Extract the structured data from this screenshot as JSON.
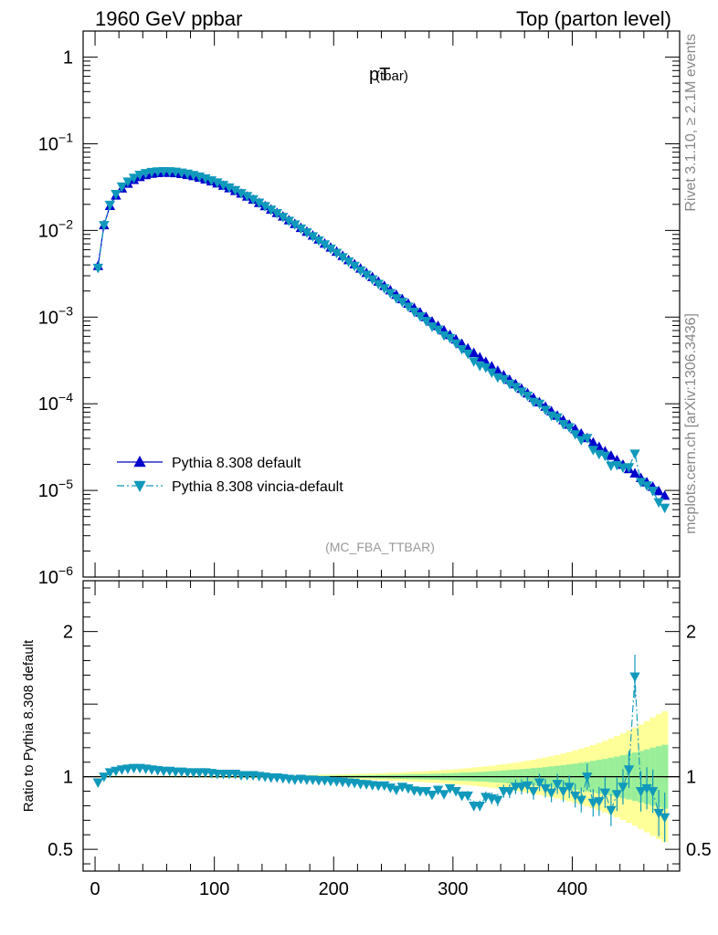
{
  "header": {
    "left": "1960 GeV ppbar",
    "right": "Top (parton level)"
  },
  "side_text": {
    "rivet": "Rivet 3.1.10, ≥ 2.1M events",
    "mcplots": "mcplots.cern.ch [arXiv:1306.3436]"
  },
  "chart_data": [
    {
      "type": "line",
      "title": "pT",
      "title_sub": "(tbar)",
      "analysis_tag": "(MC_FBA_TTBAR)",
      "y_scale": "log",
      "xlim": [
        -10,
        490
      ],
      "ylim": [
        1e-06,
        2
      ],
      "y_ticks": [
        {
          "value": 1,
          "mant": "1",
          "exp": ""
        },
        {
          "value": 0.1,
          "mant": "10",
          "exp": "−1"
        },
        {
          "value": 0.01,
          "mant": "10",
          "exp": "−2"
        },
        {
          "value": 0.001,
          "mant": "10",
          "exp": "−3"
        },
        {
          "value": 0.0001,
          "mant": "10",
          "exp": "−4"
        },
        {
          "value": 1e-05,
          "mant": "10",
          "exp": "−5"
        },
        {
          "value": 1e-06,
          "mant": "10",
          "exp": "−6"
        }
      ],
      "legend_position": "lower-left",
      "series": [
        {
          "name": "Pythia 8.308 default",
          "color": "#0000cc",
          "marker": "triangle-up",
          "line": "solid",
          "x": [
            2.5,
            7.5,
            12.5,
            17.5,
            22.5,
            27.5,
            32.5,
            37.5,
            42.5,
            47.5,
            52.5,
            57.5,
            62.5,
            67.5,
            72.5,
            77.5,
            82.5,
            87.5,
            92.5,
            97.5,
            102.5,
            107.5,
            112.5,
            117.5,
            122.5,
            127.5,
            132.5,
            137.5,
            142.5,
            147.5,
            152.5,
            157.5,
            162.5,
            167.5,
            172.5,
            177.5,
            182.5,
            187.5,
            192.5,
            197.5,
            202.5,
            207.5,
            212.5,
            217.5,
            222.5,
            227.5,
            232.5,
            237.5,
            242.5,
            247.5,
            252.5,
            257.5,
            262.5,
            267.5,
            272.5,
            277.5,
            282.5,
            287.5,
            292.5,
            297.5,
            302.5,
            307.5,
            312.5,
            317.5,
            322.5,
            327.5,
            332.5,
            337.5,
            342.5,
            347.5,
            352.5,
            357.5,
            362.5,
            367.5,
            372.5,
            377.5,
            382.5,
            387.5,
            392.5,
            397.5,
            402.5,
            407.5,
            412.5,
            417.5,
            422.5,
            427.5,
            432.5,
            437.5,
            442.5,
            447.5,
            452.5,
            457.5,
            462.5,
            467.5,
            472.5,
            477.5
          ],
          "y": [
            0.0039,
            0.0115,
            0.0192,
            0.0253,
            0.0305,
            0.0347,
            0.0383,
            0.0413,
            0.0435,
            0.0451,
            0.046,
            0.0464,
            0.0463,
            0.0458,
            0.0449,
            0.0437,
            0.0423,
            0.0406,
            0.0388,
            0.0369,
            0.0349,
            0.0328,
            0.0307,
            0.0286,
            0.0266,
            0.0246,
            0.0227,
            0.0208,
            0.0191,
            0.0174,
            0.0159,
            0.0145,
            0.0131,
            0.0119,
            0.0107,
            0.00968,
            0.00873,
            0.00786,
            0.00706,
            0.00634,
            0.00569,
            0.00509,
            0.00455,
            0.00407,
            0.00363,
            0.00324,
            0.00289,
            0.00257,
            0.00229,
            0.00204,
            0.00181,
            0.00161,
            0.00143,
            0.00127,
            0.00113,
            0.001,
            0.000889,
            0.000789,
            0.000701,
            0.000622,
            0.000552,
            0.00049,
            0.000435,
            0.000386,
            0.000343,
            0.000304,
            0.00027,
            0.00024,
            0.000213,
            0.000189,
            0.000168,
            0.000149,
            0.000132,
            0.000117,
            0.000104,
            9.25e-05,
            8.21e-05,
            7.29e-05,
            6.47e-05,
            5.74e-05,
            5.1e-05,
            4.53e-05,
            4.02e-05,
            3.57e-05,
            3.17e-05,
            2.82e-05,
            2.51e-05,
            2.23e-05,
            1.98e-05,
            1.76e-05,
            1.57e-05,
            1.39e-05,
            1.24e-05,
            1.1e-05,
            9.8e-06,
            8.7e-06
          ]
        },
        {
          "name": "Pythia 8.308 vincia-default",
          "color": "#1199bb",
          "marker": "triangle-down",
          "line": "dash-dot",
          "x": [
            2.5,
            7.5,
            12.5,
            17.5,
            22.5,
            27.5,
            32.5,
            37.5,
            42.5,
            47.5,
            52.5,
            57.5,
            62.5,
            67.5,
            72.5,
            77.5,
            82.5,
            87.5,
            92.5,
            97.5,
            102.5,
            107.5,
            112.5,
            117.5,
            122.5,
            127.5,
            132.5,
            137.5,
            142.5,
            147.5,
            152.5,
            157.5,
            162.5,
            167.5,
            172.5,
            177.5,
            182.5,
            187.5,
            192.5,
            197.5,
            202.5,
            207.5,
            212.5,
            217.5,
            222.5,
            227.5,
            232.5,
            237.5,
            242.5,
            247.5,
            252.5,
            257.5,
            262.5,
            267.5,
            272.5,
            277.5,
            282.5,
            287.5,
            292.5,
            297.5,
            302.5,
            307.5,
            312.5,
            317.5,
            322.5,
            327.5,
            332.5,
            337.5,
            342.5,
            347.5,
            352.5,
            357.5,
            362.5,
            367.5,
            372.5,
            377.5,
            382.5,
            387.5,
            392.5,
            397.5,
            402.5,
            407.5,
            412.5,
            417.5,
            422.5,
            427.5,
            432.5,
            437.5,
            442.5,
            447.5,
            452.5,
            457.5,
            462.5,
            467.5,
            472.5,
            477.5
          ],
          "y": [
            0.0037,
            0.0115,
            0.0197,
            0.0263,
            0.0321,
            0.0366,
            0.0405,
            0.0438,
            0.0459,
            0.0472,
            0.0479,
            0.0482,
            0.0481,
            0.0475,
            0.0464,
            0.0451,
            0.0436,
            0.0419,
            0.0399,
            0.0378,
            0.0357,
            0.0334,
            0.0313,
            0.0292,
            0.0269,
            0.0249,
            0.0229,
            0.0209,
            0.0191,
            0.0173,
            0.0158,
            0.0143,
            0.0129,
            0.0117,
            0.0105,
            0.00949,
            0.00855,
            0.00767,
            0.00688,
            0.00615,
            0.00551,
            0.00491,
            0.00437,
            0.0039,
            0.00345,
            0.00307,
            0.00272,
            0.00241,
            0.00215,
            0.00189,
            0.00165,
            0.0015,
            0.00132,
            0.00115,
            0.00102,
            0.0009,
            0.000778,
            0.000718,
            0.000617,
            0.000572,
            0.000497,
            0.000426,
            0.000378,
            0.000309,
            0.000274,
            0.000262,
            0.000229,
            0.000202,
            0.000192,
            0.00017,
            0.000156,
            0.000138,
            0.000124,
            0.000105,
            9.98e-05,
            8.51e-05,
            7.31e-05,
            6.93e-05,
            5.82e-05,
            5.34e-05,
            4.44e-05,
            3.81e-05,
            4.02e-05,
            2.93e-05,
            2.63e-05,
            2.51e-05,
            1.93e-05,
            1.96e-05,
            1.84e-05,
            1.85e-05,
            2.65e-05,
            1.25e-05,
            1.14e-05,
            9.9e-06,
            7.3e-06,
            6.3e-06
          ]
        }
      ]
    },
    {
      "type": "line",
      "ylabel": "Ratio to Pythia 8.308 default",
      "xlim": [
        -10,
        490
      ],
      "ylim": [
        0.35,
        2.35
      ],
      "x_ticks": [
        0,
        100,
        200,
        300,
        400
      ],
      "y_ticks": [
        0.5,
        1,
        2
      ],
      "reference_line": 1,
      "band_inner_color": "#99ee99",
      "band_outer_color": "#ffff99",
      "band_x": [
        2.5,
        7.5,
        12.5,
        17.5,
        22.5,
        27.5,
        32.5,
        37.5,
        42.5,
        47.5,
        52.5,
        57.5,
        62.5,
        67.5,
        72.5,
        77.5,
        82.5,
        87.5,
        92.5,
        97.5,
        102.5,
        107.5,
        112.5,
        117.5,
        122.5,
        127.5,
        132.5,
        137.5,
        142.5,
        147.5,
        152.5,
        157.5,
        162.5,
        167.5,
        172.5,
        177.5,
        182.5,
        187.5,
        192.5,
        197.5,
        202.5,
        207.5,
        212.5,
        217.5,
        222.5,
        227.5,
        232.5,
        237.5,
        242.5,
        247.5,
        252.5,
        257.5,
        262.5,
        267.5,
        272.5,
        277.5,
        282.5,
        287.5,
        292.5,
        297.5,
        302.5,
        307.5,
        312.5,
        317.5,
        322.5,
        327.5,
        332.5,
        337.5,
        342.5,
        347.5,
        352.5,
        357.5,
        362.5,
        367.5,
        372.5,
        377.5,
        382.5,
        387.5,
        392.5,
        397.5,
        402.5,
        407.5,
        412.5,
        417.5,
        422.5,
        427.5,
        432.5,
        437.5,
        442.5,
        447.5,
        452.5,
        457.5,
        462.5,
        467.5,
        472.5,
        477.5
      ],
      "band_inner": [
        0.003,
        0.003,
        0.003,
        0.003,
        0.003,
        0.003,
        0.003,
        0.003,
        0.003,
        0.003,
        0.003,
        0.003,
        0.003,
        0.003,
        0.003,
        0.003,
        0.003,
        0.003,
        0.003,
        0.003,
        0.004,
        0.004,
        0.004,
        0.004,
        0.004,
        0.004,
        0.004,
        0.004,
        0.005,
        0.005,
        0.005,
        0.005,
        0.005,
        0.005,
        0.006,
        0.006,
        0.006,
        0.007,
        0.007,
        0.007,
        0.008,
        0.008,
        0.009,
        0.009,
        0.01,
        0.01,
        0.011,
        0.012,
        0.012,
        0.013,
        0.014,
        0.015,
        0.016,
        0.017,
        0.018,
        0.019,
        0.02,
        0.021,
        0.023,
        0.024,
        0.026,
        0.028,
        0.029,
        0.031,
        0.033,
        0.035,
        0.038,
        0.04,
        0.043,
        0.046,
        0.049,
        0.052,
        0.055,
        0.059,
        0.062,
        0.066,
        0.071,
        0.075,
        0.08,
        0.085,
        0.09,
        0.096,
        0.102,
        0.109,
        0.116,
        0.123,
        0.131,
        0.139,
        0.148,
        0.157,
        0.167,
        0.177,
        0.188,
        0.2,
        0.21,
        0.22
      ],
      "band_outer": [
        0.006,
        0.006,
        0.006,
        0.006,
        0.006,
        0.006,
        0.006,
        0.006,
        0.006,
        0.006,
        0.006,
        0.006,
        0.006,
        0.006,
        0.006,
        0.006,
        0.006,
        0.006,
        0.006,
        0.007,
        0.007,
        0.007,
        0.008,
        0.008,
        0.008,
        0.008,
        0.009,
        0.009,
        0.009,
        0.01,
        0.01,
        0.01,
        0.011,
        0.011,
        0.012,
        0.012,
        0.013,
        0.014,
        0.014,
        0.015,
        0.016,
        0.017,
        0.018,
        0.019,
        0.02,
        0.021,
        0.022,
        0.024,
        0.025,
        0.027,
        0.028,
        0.03,
        0.032,
        0.034,
        0.036,
        0.038,
        0.041,
        0.043,
        0.046,
        0.049,
        0.052,
        0.056,
        0.059,
        0.063,
        0.067,
        0.071,
        0.076,
        0.081,
        0.086,
        0.091,
        0.097,
        0.103,
        0.11,
        0.117,
        0.125,
        0.133,
        0.141,
        0.15,
        0.16,
        0.17,
        0.181,
        0.193,
        0.205,
        0.218,
        0.232,
        0.247,
        0.263,
        0.28,
        0.298,
        0.317,
        0.338,
        0.36,
        0.383,
        0.408,
        0.43,
        0.45
      ],
      "series": [
        {
          "name": "Pythia 8.308 vincia-default",
          "color": "#1199bb",
          "marker": "triangle-down",
          "x": [
            2.5,
            7.5,
            12.5,
            17.5,
            22.5,
            27.5,
            32.5,
            37.5,
            42.5,
            47.5,
            52.5,
            57.5,
            62.5,
            67.5,
            72.5,
            77.5,
            82.5,
            87.5,
            92.5,
            97.5,
            102.5,
            107.5,
            112.5,
            117.5,
            122.5,
            127.5,
            132.5,
            137.5,
            142.5,
            147.5,
            152.5,
            157.5,
            162.5,
            167.5,
            172.5,
            177.5,
            182.5,
            187.5,
            192.5,
            197.5,
            202.5,
            207.5,
            212.5,
            217.5,
            222.5,
            227.5,
            232.5,
            237.5,
            242.5,
            247.5,
            252.5,
            257.5,
            262.5,
            267.5,
            272.5,
            277.5,
            282.5,
            287.5,
            292.5,
            297.5,
            302.5,
            307.5,
            312.5,
            317.5,
            322.5,
            327.5,
            332.5,
            337.5,
            342.5,
            347.5,
            352.5,
            357.5,
            362.5,
            367.5,
            372.5,
            377.5,
            382.5,
            387.5,
            392.5,
            397.5,
            402.5,
            407.5,
            412.5,
            417.5,
            422.5,
            427.5,
            432.5,
            437.5,
            442.5,
            447.5,
            452.5,
            457.5,
            462.5,
            467.5,
            472.5,
            477.5
          ],
          "y": [
            0.96,
            1.0,
            1.03,
            1.04,
            1.05,
            1.055,
            1.06,
            1.06,
            1.055,
            1.05,
            1.045,
            1.04,
            1.04,
            1.035,
            1.035,
            1.03,
            1.03,
            1.03,
            1.03,
            1.025,
            1.02,
            1.02,
            1.02,
            1.02,
            1.01,
            1.01,
            1.01,
            1.005,
            1.0,
            0.995,
            0.995,
            0.99,
            0.985,
            0.98,
            0.985,
            0.98,
            0.98,
            0.975,
            0.975,
            0.97,
            0.968,
            0.965,
            0.96,
            0.958,
            0.95,
            0.948,
            0.942,
            0.938,
            0.94,
            0.925,
            0.91,
            0.93,
            0.92,
            0.905,
            0.9,
            0.9,
            0.875,
            0.91,
            0.88,
            0.92,
            0.9,
            0.87,
            0.87,
            0.8,
            0.8,
            0.86,
            0.85,
            0.84,
            0.9,
            0.9,
            0.93,
            0.93,
            0.94,
            0.9,
            0.96,
            0.92,
            0.89,
            0.95,
            0.9,
            0.93,
            0.87,
            0.84,
            1.0,
            0.82,
            0.83,
            0.89,
            0.77,
            0.88,
            0.93,
            1.05,
            1.69,
            0.9,
            0.92,
            0.9,
            0.75,
            0.72
          ],
          "err": [
            0.01,
            0.006,
            0.004,
            0.003,
            0.003,
            0.003,
            0.003,
            0.003,
            0.003,
            0.003,
            0.003,
            0.003,
            0.003,
            0.003,
            0.003,
            0.003,
            0.003,
            0.003,
            0.003,
            0.003,
            0.003,
            0.003,
            0.003,
            0.004,
            0.004,
            0.004,
            0.004,
            0.004,
            0.005,
            0.005,
            0.005,
            0.005,
            0.006,
            0.006,
            0.006,
            0.007,
            0.007,
            0.007,
            0.008,
            0.008,
            0.009,
            0.009,
            0.01,
            0.01,
            0.011,
            0.012,
            0.012,
            0.013,
            0.014,
            0.015,
            0.016,
            0.017,
            0.018,
            0.019,
            0.02,
            0.021,
            0.022,
            0.023,
            0.025,
            0.026,
            0.028,
            0.03,
            0.032,
            0.034,
            0.036,
            0.038,
            0.04,
            0.043,
            0.045,
            0.048,
            0.05,
            0.052,
            0.055,
            0.058,
            0.06,
            0.063,
            0.066,
            0.07,
            0.074,
            0.078,
            0.082,
            0.086,
            0.09,
            0.095,
            0.1,
            0.105,
            0.11,
            0.116,
            0.122,
            0.128,
            0.15,
            0.14,
            0.145,
            0.15,
            0.16,
            0.17
          ]
        }
      ]
    }
  ]
}
